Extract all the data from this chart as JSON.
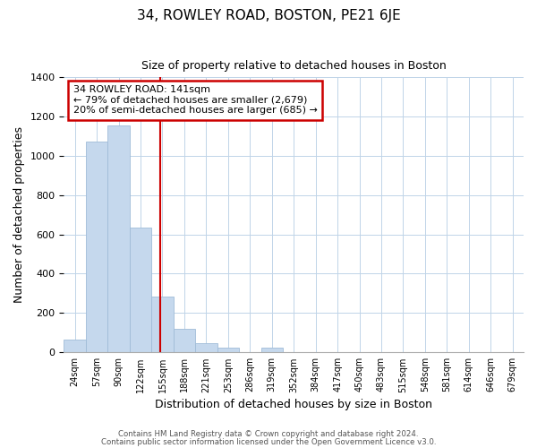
{
  "title": "34, ROWLEY ROAD, BOSTON, PE21 6JE",
  "subtitle": "Size of property relative to detached houses in Boston",
  "xlabel": "Distribution of detached houses by size in Boston",
  "ylabel": "Number of detached properties",
  "bar_labels": [
    "24sqm",
    "57sqm",
    "90sqm",
    "122sqm",
    "155sqm",
    "188sqm",
    "221sqm",
    "253sqm",
    "286sqm",
    "319sqm",
    "352sqm",
    "384sqm",
    "417sqm",
    "450sqm",
    "483sqm",
    "515sqm",
    "548sqm",
    "581sqm",
    "614sqm",
    "646sqm",
    "679sqm"
  ],
  "bar_values": [
    65,
    1070,
    1155,
    635,
    285,
    120,
    48,
    22,
    0,
    22,
    0,
    0,
    0,
    0,
    0,
    0,
    0,
    0,
    0,
    0,
    0
  ],
  "bar_color": "#c5d8ed",
  "bar_edge_color": "#a0bcd8",
  "ylim": [
    0,
    1400
  ],
  "yticks": [
    0,
    200,
    400,
    600,
    800,
    1000,
    1200,
    1400
  ],
  "annotation_title": "34 ROWLEY ROAD: 141sqm",
  "annotation_line1": "← 79% of detached houses are smaller (2,679)",
  "annotation_line2": "20% of semi-detached houses are larger (685) →",
  "annotation_box_color": "#ffffff",
  "annotation_border_color": "#cc0000",
  "vline_x": 3.88,
  "footer1": "Contains HM Land Registry data © Crown copyright and database right 2024.",
  "footer2": "Contains public sector information licensed under the Open Government Licence v3.0."
}
